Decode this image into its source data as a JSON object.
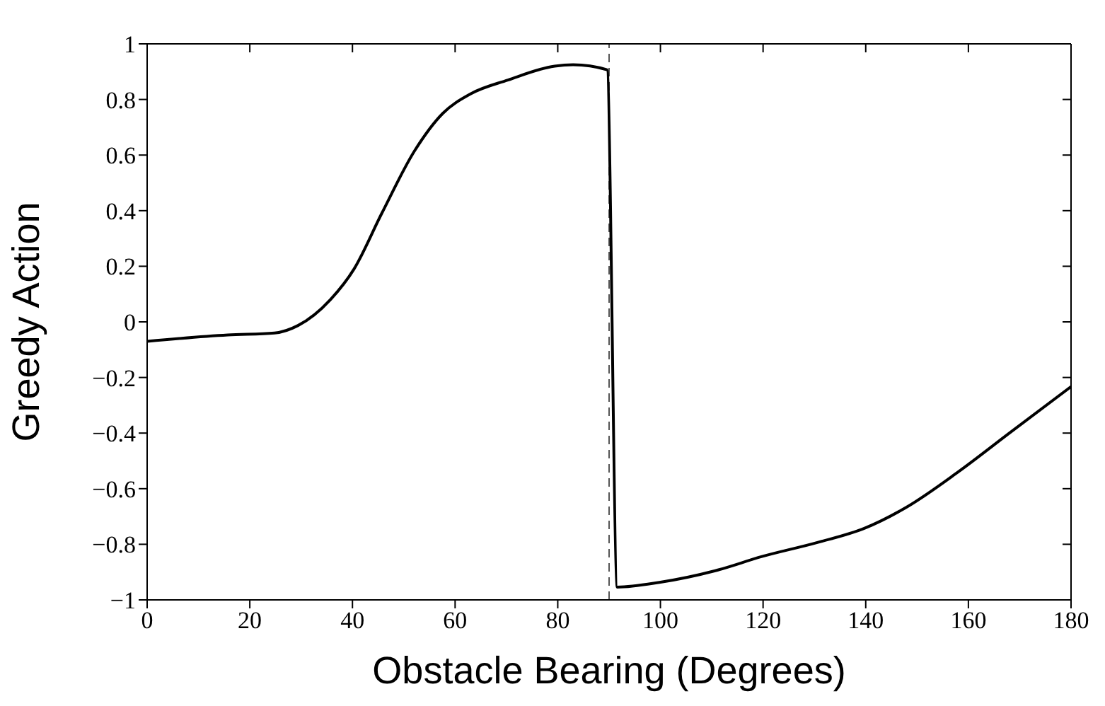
{
  "chart_data": {
    "type": "line",
    "xlabel": "Obstacle Bearing (Degrees)",
    "ylabel": "Greedy Action",
    "x": [
      0,
      15.7,
      24.8,
      29.4,
      35.7,
      40.3,
      45.7,
      52.1,
      57.6,
      63,
      70.3,
      79.4,
      83,
      89.6,
      91.6,
      99.8,
      110.7,
      119.8,
      130.7,
      139.8,
      148,
      158,
      168,
      180
    ],
    "series": [
      {
        "color": "#000000",
        "values": [
          -0.07,
          -0.047,
          -0.04,
          -0.013,
          0.08,
          0.19,
          0.39,
          0.615,
          0.75,
          0.82,
          0.87,
          0.92,
          0.925,
          0.907,
          -0.954,
          -0.937,
          -0.895,
          -0.844,
          -0.793,
          -0.742,
          -0.666,
          -0.54,
          -0.4,
          -0.233
        ]
      }
    ],
    "xlim": [
      0,
      180
    ],
    "xticks": [
      0,
      20,
      40,
      60,
      80,
      100,
      120,
      140,
      160,
      180
    ],
    "ylim": [
      -1,
      1
    ],
    "yticks": [
      {
        "value": -1,
        "label": "−1"
      },
      {
        "value": -0.8,
        "label": "−0.8"
      },
      {
        "value": -0.6,
        "label": "−0.6"
      },
      {
        "value": -0.4,
        "label": "−0.4"
      },
      {
        "value": -0.2,
        "label": "−0.2"
      },
      0,
      0.2,
      0.4,
      0.6,
      0.8,
      1
    ],
    "ref_lines": [
      {
        "axis": "x",
        "value": 90,
        "color": "#555555",
        "line_style": "dashed"
      }
    ],
    "grid": false,
    "legend": false,
    "marker": "none",
    "line_style": "solid"
  }
}
